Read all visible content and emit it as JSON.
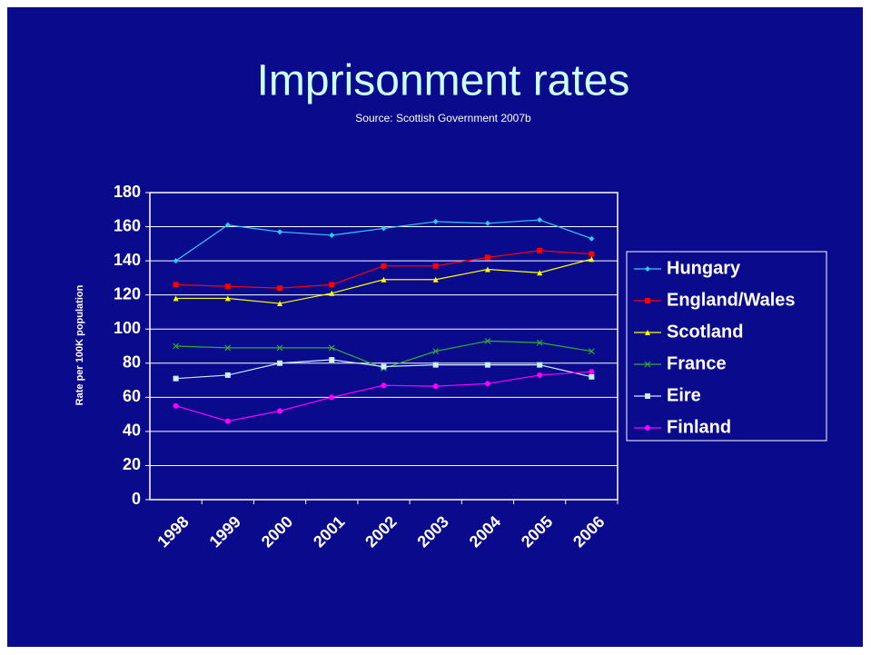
{
  "chart_data": {
    "type": "line",
    "title": "Imprisonment rates",
    "subtitle": "Source: Scottish Government 2007b",
    "y_label": "Rate per 100K population",
    "categories": [
      "1998",
      "1999",
      "2000",
      "2001",
      "2002",
      "2003",
      "2004",
      "2005",
      "2006"
    ],
    "series": [
      {
        "name": "Hungary",
        "color": "#33ccff",
        "marker": "diamond",
        "values": [
          140,
          161,
          157,
          155,
          159,
          163,
          162,
          164,
          153
        ]
      },
      {
        "name": "England/Wales",
        "color": "#ff0000",
        "marker": "square",
        "values": [
          126,
          125,
          124,
          126,
          137,
          137,
          142,
          146,
          144
        ]
      },
      {
        "name": "Scotland",
        "color": "#ffff00",
        "marker": "triangle",
        "values": [
          118,
          118,
          115,
          121,
          129,
          129,
          135,
          133,
          141
        ]
      },
      {
        "name": "France",
        "color": "#33aa33",
        "marker": "x",
        "values": [
          90,
          89,
          89,
          89,
          77,
          87,
          93,
          92,
          87
        ]
      },
      {
        "name": "Eire",
        "color": "#ccecff",
        "marker": "square",
        "values": [
          71,
          73,
          80,
          82,
          78,
          79,
          79,
          79,
          72
        ]
      },
      {
        "name": "Finland",
        "color": "#ff00ff",
        "marker": "circle",
        "values": [
          55,
          46,
          52,
          60,
          67,
          66.5,
          68,
          73,
          75
        ]
      }
    ],
    "ylim": [
      0,
      180
    ],
    "yticks": [
      0,
      20,
      40,
      60,
      80,
      100,
      120,
      140,
      160,
      180
    ],
    "grid": true,
    "legend": "right"
  }
}
